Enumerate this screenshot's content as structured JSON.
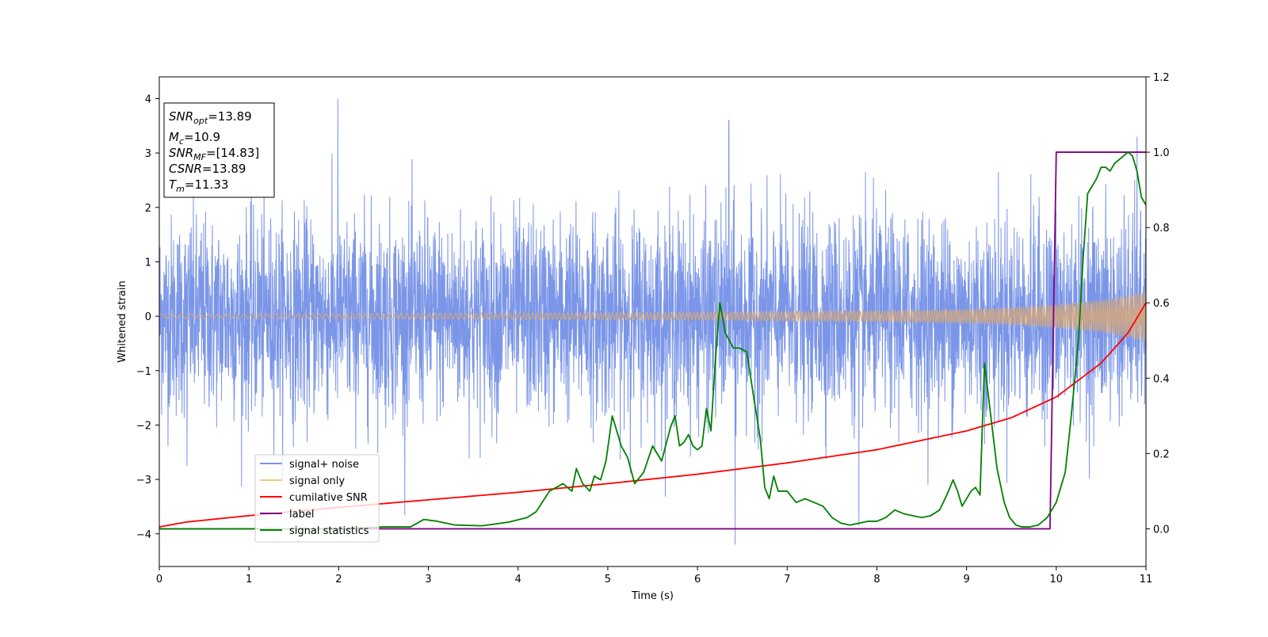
{
  "chart_data": {
    "type": "line",
    "xlabel": "Time (s)",
    "ylabel": "Whitened strain",
    "xlim": [
      0,
      11
    ],
    "ylim_left": [
      -4.6,
      4.4
    ],
    "ylim_right": [
      -0.1,
      1.2
    ],
    "x_ticks": [
      "0",
      "1",
      "2",
      "3",
      "4",
      "5",
      "6",
      "7",
      "8",
      "9",
      "10",
      "11"
    ],
    "y_ticks_left": [
      "−4",
      "−3",
      "−2",
      "−1",
      "0",
      "1",
      "2",
      "3",
      "4"
    ],
    "y_ticks_right": [
      "0.0",
      "0.2",
      "0.4",
      "0.6",
      "0.8",
      "1.0",
      "1.2"
    ],
    "grid": false,
    "legend_position": "lower-left",
    "legend": [
      {
        "label": "signal+ noise",
        "color": "#7b96e8"
      },
      {
        "label": "signal only",
        "color": "#f5c87a"
      },
      {
        "label": "cumilative SNR",
        "color": "#ff0000"
      },
      {
        "label": "label",
        "color": "#800080"
      },
      {
        "label": "signal statistics",
        "color": "#008000"
      }
    ],
    "info_box": {
      "snr_opt": {
        "main": "SNR",
        "sub": "opt",
        "value": "=13.89"
      },
      "mc": {
        "main": "M",
        "sub": "c",
        "value": "=10.9"
      },
      "snr_mf": {
        "main": "SNR",
        "sub": "MF",
        "value": "=[14.83]"
      },
      "csnr": {
        "main": "CSNR",
        "sub": "",
        "value": "=13.89"
      },
      "tm": {
        "main": "T",
        "sub": "m",
        "value": "=11.33"
      }
    },
    "series": [
      {
        "name": "signal+ noise",
        "axis": "left",
        "noise_band_std": 0.9,
        "peak_spikes": [
          {
            "x": 1.99,
            "y": 4.0
          },
          {
            "x": 6.35,
            "y": 3.6
          },
          {
            "x": 6.42,
            "y": -4.2
          },
          {
            "x": 7.8,
            "y": -3.85
          },
          {
            "x": 10.9,
            "y": 3.3
          },
          {
            "x": 0.31,
            "y": -2.75
          }
        ]
      },
      {
        "name": "signal only",
        "axis": "left",
        "envelope": {
          "x": [
            0,
            2,
            4,
            6,
            8,
            9,
            9.5,
            10,
            10.5,
            10.8,
            11
          ],
          "amp": [
            0.04,
            0.05,
            0.06,
            0.07,
            0.1,
            0.13,
            0.16,
            0.22,
            0.3,
            0.39,
            0.48
          ]
        }
      },
      {
        "name": "cumilative SNR",
        "axis": "right",
        "x": [
          0,
          0.3,
          1,
          2,
          3,
          4,
          5,
          6,
          7,
          8,
          9,
          9.5,
          10,
          10.5,
          10.8,
          11
        ],
        "y": [
          0.005,
          0.018,
          0.035,
          0.057,
          0.077,
          0.097,
          0.12,
          0.145,
          0.175,
          0.21,
          0.26,
          0.295,
          0.35,
          0.44,
          0.52,
          0.6
        ]
      },
      {
        "name": "label",
        "axis": "right",
        "x": [
          0,
          9.93,
          10.0,
          11
        ],
        "y": [
          0,
          0,
          1,
          1
        ]
      },
      {
        "name": "signal statistics",
        "axis": "right",
        "x": [
          0,
          1,
          2,
          2.5,
          2.8,
          2.95,
          3.1,
          3.3,
          3.6,
          3.9,
          4.1,
          4.2,
          4.35,
          4.5,
          4.6,
          4.65,
          4.72,
          4.8,
          4.85,
          4.92,
          4.98,
          5.05,
          5.1,
          5.15,
          5.22,
          5.3,
          5.4,
          5.5,
          5.6,
          5.7,
          5.75,
          5.8,
          5.85,
          5.9,
          5.95,
          6.0,
          6.05,
          6.1,
          6.15,
          6.2,
          6.25,
          6.31,
          6.4,
          6.47,
          6.55,
          6.62,
          6.7,
          6.75,
          6.8,
          6.85,
          6.9,
          6.95,
          7.0,
          7.1,
          7.2,
          7.3,
          7.4,
          7.5,
          7.6,
          7.7,
          7.8,
          7.9,
          8.0,
          8.1,
          8.2,
          8.3,
          8.4,
          8.5,
          8.6,
          8.7,
          8.78,
          8.85,
          8.9,
          8.95,
          9.0,
          9.05,
          9.1,
          9.15,
          9.2,
          9.28,
          9.34,
          9.42,
          9.48,
          9.55,
          9.62,
          9.7,
          9.8,
          9.9,
          10.0,
          10.1,
          10.15,
          10.2,
          10.25,
          10.3,
          10.35,
          10.4,
          10.45,
          10.5,
          10.55,
          10.6,
          10.65,
          10.7,
          10.75,
          10.8,
          10.85,
          10.9,
          10.95,
          11.0
        ],
        "y": [
          0.0,
          0.0,
          0.0,
          0.005,
          0.005,
          0.025,
          0.02,
          0.01,
          0.008,
          0.018,
          0.03,
          0.045,
          0.1,
          0.12,
          0.1,
          0.16,
          0.12,
          0.1,
          0.14,
          0.13,
          0.18,
          0.3,
          0.26,
          0.22,
          0.19,
          0.12,
          0.15,
          0.22,
          0.18,
          0.27,
          0.3,
          0.22,
          0.23,
          0.25,
          0.22,
          0.21,
          0.22,
          0.32,
          0.26,
          0.45,
          0.6,
          0.52,
          0.48,
          0.48,
          0.47,
          0.36,
          0.24,
          0.11,
          0.08,
          0.14,
          0.1,
          0.1,
          0.1,
          0.07,
          0.08,
          0.07,
          0.06,
          0.03,
          0.015,
          0.01,
          0.015,
          0.02,
          0.02,
          0.03,
          0.05,
          0.04,
          0.035,
          0.03,
          0.035,
          0.05,
          0.09,
          0.13,
          0.1,
          0.06,
          0.08,
          0.1,
          0.11,
          0.09,
          0.44,
          0.28,
          0.16,
          0.07,
          0.03,
          0.01,
          0.005,
          0.005,
          0.01,
          0.03,
          0.07,
          0.15,
          0.26,
          0.38,
          0.51,
          0.72,
          0.89,
          0.91,
          0.93,
          0.96,
          0.96,
          0.95,
          0.97,
          0.98,
          0.99,
          1.0,
          0.99,
          0.95,
          0.88,
          0.86
        ]
      }
    ]
  }
}
